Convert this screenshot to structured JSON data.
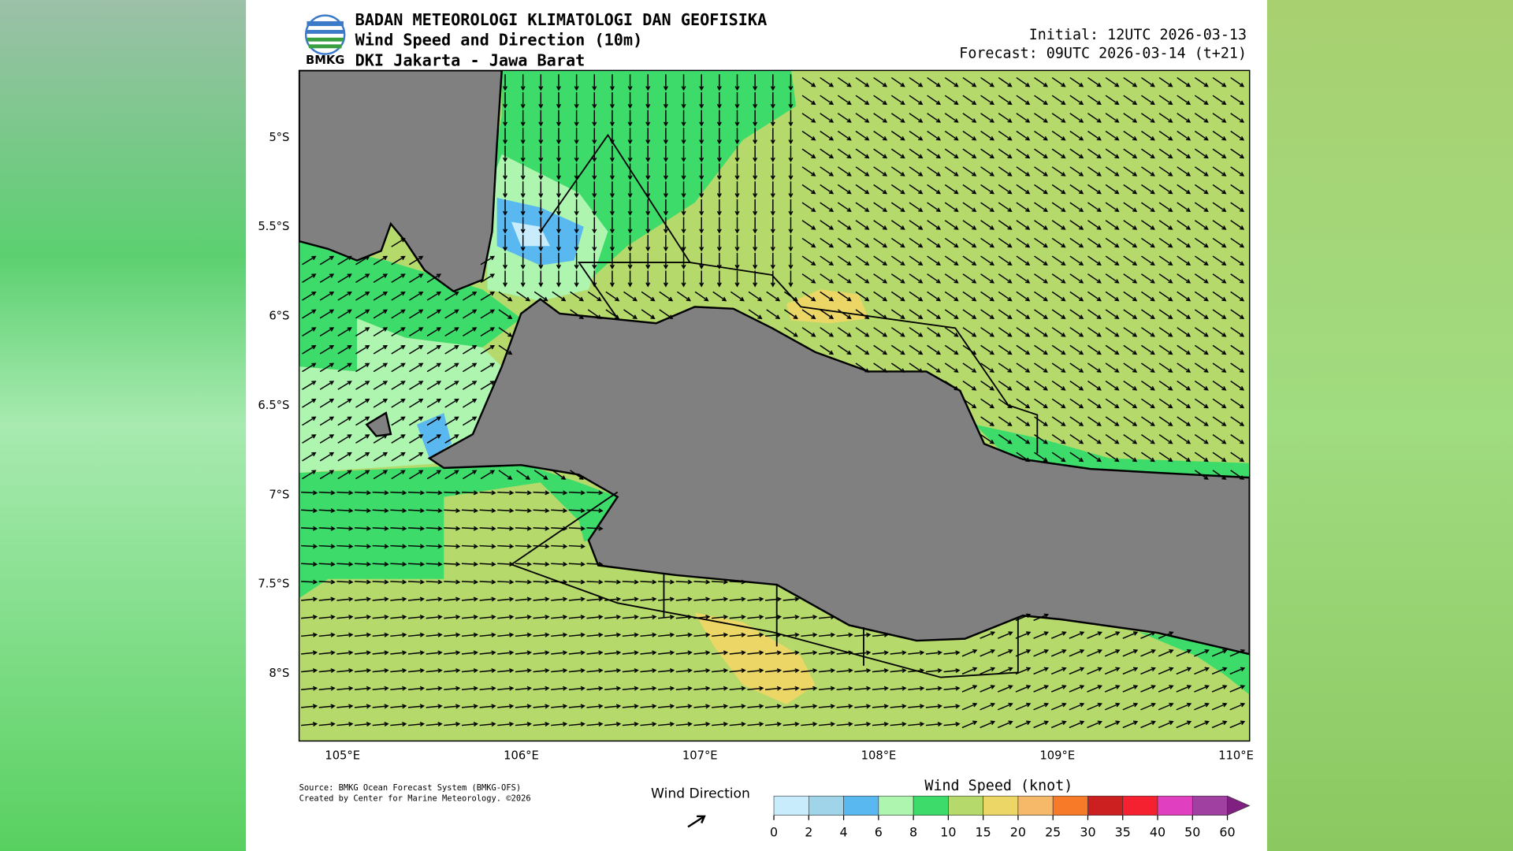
{
  "header": {
    "agency": "BADAN METEOROLOGI KLIMATOLOGI DAN GEOFISIKA",
    "product": "Wind Speed and Direction (10m)",
    "region": "DKI Jakarta - Jawa Barat",
    "logo_text": "BMKG",
    "initial": "Initial: 12UTC 2026-03-13",
    "forecast": "Forecast: 09UTC 2026-03-14 (t+21)"
  },
  "axes": {
    "lat_labels": [
      "5°S",
      "5.5°S",
      "6°S",
      "6.5°S",
      "7°S",
      "7.5°S",
      "8°S"
    ],
    "lon_labels": [
      "105°E",
      "106°E",
      "107°E",
      "108°E",
      "109°E",
      "110°E"
    ]
  },
  "footer": {
    "source": [
      "Source: BMKG Ocean Forecast System (BMKG-OFS)",
      "Created by Center for Marine Meteorology. ©2026"
    ],
    "wind_direction_label": "Wind Direction"
  },
  "colorbar": {
    "title": "Wind Speed (knot)",
    "levels": [
      "0",
      "2",
      "4",
      "6",
      "8",
      "10",
      "15",
      "20",
      "25",
      "30",
      "35",
      "40",
      "50",
      "60"
    ],
    "colors": [
      "#c8ecfb",
      "#a0d4e8",
      "#5ab8f0",
      "#aef5b0",
      "#3ddc6a",
      "#b5d96b",
      "#ecd766",
      "#f6b96a",
      "#f67a28",
      "#cc2020",
      "#f52030",
      "#e040c0",
      "#a040a0",
      "#802080"
    ]
  }
}
